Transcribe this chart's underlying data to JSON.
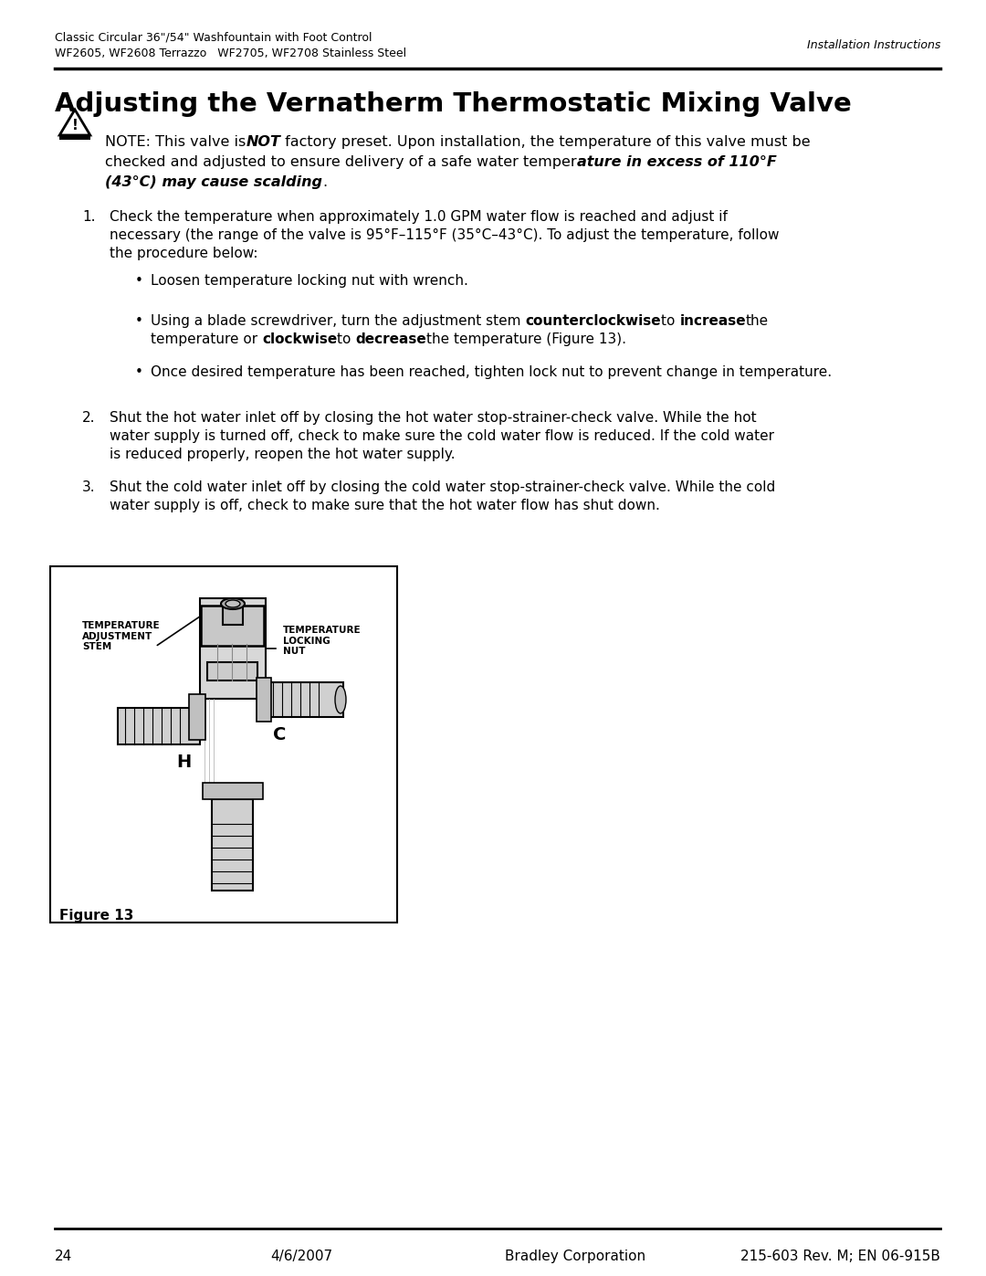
{
  "header_line1": "Classic Circular 36\"/54\" Washfountain with Foot Control",
  "header_line2": "WF2605, WF2608 Terrazzo   WF2705, WF2708 Stainless Steel",
  "header_right": "Installation Instructions",
  "title": "Adjusting the Vernatherm Thermostatic Mixing Valve",
  "footer_page": "24",
  "footer_date": "4/6/2007",
  "footer_company": "Bradley Corporation",
  "footer_doc": "215-603 Rev. M; EN 06-915B",
  "figure_label": "Figure 13",
  "bg_color": "#ffffff",
  "text_color": "#000000"
}
